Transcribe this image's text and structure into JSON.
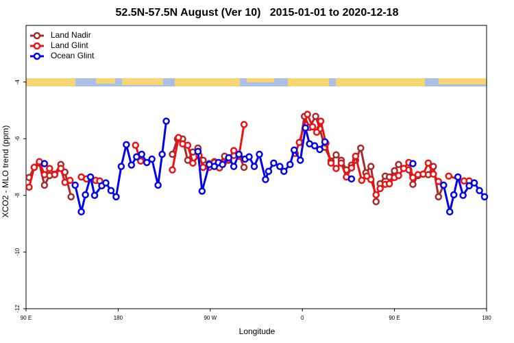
{
  "chart_data": {
    "type": "line",
    "title": "52.5N-57.5N August (Ver 10)   2015-01-01 to 2020-12-18",
    "x_label": "Longitude",
    "y_label": "XCO2 - MLO trend (ppm)",
    "xlim": [
      90,
      540
    ],
    "xticks": [
      {
        "value": 90,
        "label": "90 E"
      },
      180,
      {
        "value": 270,
        "label": "90 W"
      },
      {
        "value": 360,
        "label": "0"
      },
      {
        "value": 450,
        "label": "90 E"
      },
      {
        "value": 540,
        "label": "180"
      }
    ],
    "ylim": [
      -12,
      -2
    ],
    "yticks": [
      -12,
      -10,
      -8,
      -6,
      -4
    ],
    "legend": "upper left",
    "series": [
      {
        "name": "Land Nadir",
        "color": "#a52a2a",
        "x": [
          93,
          98,
          103,
          108,
          113,
          118,
          124,
          128,
          134,
          null,
          233,
          238,
          243,
          248,
          253,
          258,
          263,
          269,
          274,
          279,
          284,
          288,
          293,
          298,
          303,
          null,
          358,
          362,
          367,
          373,
          377,
          382,
          388,
          393,
          398,
          403,
          408,
          412,
          417,
          422,
          427,
          432,
          436,
          441,
          445,
          450,
          454,
          459,
          464,
          468,
          473,
          478,
          483,
          488,
          493,
          498
        ],
        "values": [
          -7.37,
          -7.01,
          -6.86,
          -7.64,
          -7.3,
          -7.25,
          -6.91,
          -7.18,
          -8.05,
          null,
          -6.55,
          -6.01,
          -6.01,
          -6.76,
          -6.47,
          -6.33,
          -6.76,
          -6.88,
          -6.81,
          -6.86,
          -6.62,
          -6.76,
          -6.59,
          -6.55,
          -7.01,
          null,
          -6.13,
          -5.21,
          -5.6,
          -5.21,
          -5.65,
          -6.3,
          -6.79,
          -6.57,
          -6.76,
          -7.1,
          -6.93,
          -6.76,
          -6.33,
          -7.2,
          -6.98,
          -8.22,
          -7.59,
          -7.32,
          -7.35,
          -7.13,
          -6.91,
          -7.05,
          -7.1,
          -7.61,
          -7.3,
          -7.25,
          -7.27,
          -6.98,
          -8.05,
          -7.64
        ]
      },
      {
        "name": "Land Glint",
        "color": "#ee1111",
        "x": [
          93,
          98,
          103,
          108,
          113,
          118,
          124,
          128,
          133,
          null,
          144,
          149,
          158,
          162,
          null,
          197,
          202,
          null,
          233,
          239,
          243,
          248,
          253,
          259,
          263,
          269,
          274,
          279,
          283,
          288,
          293,
          298,
          303,
          null,
          353,
          357,
          365,
          370,
          374,
          378,
          383,
          388,
          393,
          398,
          403,
          408,
          412,
          418,
          423,
          427,
          432,
          436,
          441,
          445,
          450,
          454,
          459,
          464,
          468,
          473,
          478,
          483,
          488,
          493,
          null,
          503,
          518,
          523
        ],
        "values": [
          -7.71,
          -7.01,
          -6.81,
          -7.27,
          -7.05,
          -7.27,
          -7.05,
          -7.54,
          -7.47,
          null,
          -7.35,
          -7.42,
          -7.47,
          -7.49,
          null,
          -6.23,
          -6.79,
          null,
          -7.1,
          -5.96,
          -6.18,
          -6.23,
          -6.86,
          -6.59,
          -7.01,
          -7.01,
          -6.84,
          -7.03,
          -6.84,
          -6.74,
          -6.42,
          -6.62,
          -5.5,
          null,
          -6.52,
          -6.13,
          -5.14,
          -5.58,
          -5.77,
          -5.38,
          -6.16,
          -6.86,
          -7.05,
          -6.86,
          -7.35,
          -7.03,
          -6.62,
          -7.47,
          -7.32,
          -7.44,
          -7.98,
          -7.76,
          -7.61,
          -7.59,
          -7.37,
          -7.3,
          -7.05,
          -6.84,
          -7.37,
          -7.27,
          -7.25,
          -6.86,
          -7.25,
          -7.51,
          null,
          -7.32,
          -7.49,
          -7.49
        ]
      },
      {
        "name": "Ocean Glint",
        "color": "#0000ee",
        "x": [
          108,
          null,
          138,
          144,
          148,
          153,
          157,
          164,
          168,
          173,
          178,
          183,
          188,
          193,
          198,
          203,
          208,
          213,
          219,
          223,
          227,
          null,
          258,
          262,
          269,
          274,
          278,
          282,
          288,
          293,
          298,
          304,
          308,
          313,
          318,
          324,
          327,
          332,
          338,
          342,
          348,
          352,
          358,
          363,
          367,
          372,
          377,
          382,
          null,
          408,
          null,
          468,
          null,
          498,
          504,
          508,
          512,
          517,
          523,
          528,
          533,
          538
        ],
        "values": [
          -6.88,
          null,
          -7.64,
          -8.58,
          -7.98,
          -7.35,
          -8.0,
          -7.66,
          -7.56,
          -7.83,
          -8.05,
          -6.98,
          -6.21,
          -6.93,
          -6.64,
          -6.55,
          -6.84,
          -6.72,
          -7.64,
          -6.55,
          -5.38,
          null,
          -6.45,
          -7.85,
          -6.91,
          -6.98,
          -6.84,
          -6.91,
          -6.67,
          -6.98,
          -6.55,
          -6.72,
          -6.64,
          -6.98,
          -6.55,
          -7.44,
          -7.15,
          -6.86,
          -6.98,
          -7.15,
          -6.91,
          -6.4,
          -6.76,
          -5.62,
          -6.18,
          -6.25,
          -6.38,
          -6.11,
          null,
          -7.42,
          null,
          -6.88,
          null,
          -7.64,
          -8.58,
          -7.98,
          -7.35,
          -8.0,
          -7.66,
          -7.56,
          -7.83,
          -8.05
        ]
      }
    ]
  }
}
